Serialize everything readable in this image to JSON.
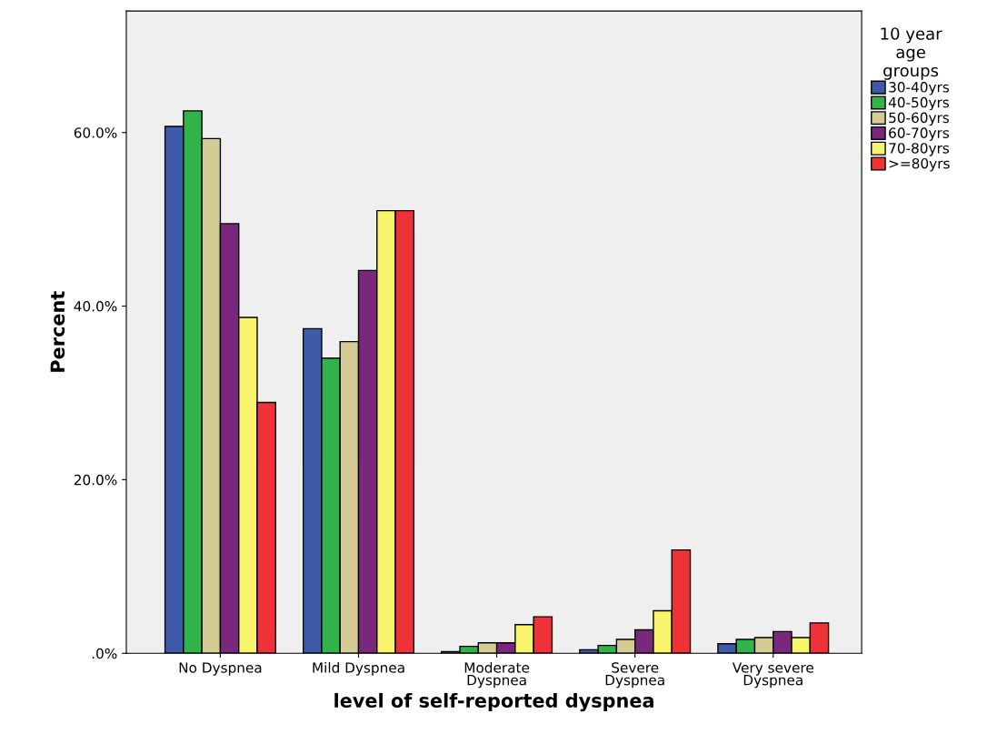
{
  "chart_data": {
    "type": "bar",
    "categories": [
      "No Dyspnea",
      "Mild Dyspnea",
      "Moderate\nDyspnea",
      "Severe\nDyspnea",
      "Very severe\nDyspnea"
    ],
    "series": [
      {
        "name": "30-40yrs",
        "color": "#3f5aa8",
        "values": [
          60.7,
          37.4,
          0.2,
          0.4,
          1.1
        ]
      },
      {
        "name": "40-50yrs",
        "color": "#33b44a",
        "values": [
          62.5,
          34.0,
          0.8,
          0.9,
          1.6
        ]
      },
      {
        "name": "50-60yrs",
        "color": "#d4cc94",
        "values": [
          59.3,
          35.9,
          1.2,
          1.6,
          1.8
        ]
      },
      {
        "name": "60-70yrs",
        "color": "#7a287c",
        "values": [
          49.5,
          44.1,
          1.2,
          2.7,
          2.5
        ]
      },
      {
        "name": "70-80yrs",
        "color": "#f8f46c",
        "values": [
          38.7,
          51.0,
          3.3,
          4.9,
          1.8
        ]
      },
      {
        "name": ">=80yrs",
        "color": "#ee3237",
        "values": [
          28.9,
          51.0,
          4.2,
          11.9,
          3.5
        ]
      }
    ],
    "xlabel": "level of self-reported dyspnea",
    "ylabel": "Percent",
    "legend_title": "10 year\nage\ngroups",
    "legend": "top right",
    "ylim": [
      0,
      74
    ],
    "yticks": [
      {
        "value": 0,
        "label": ".0%"
      },
      {
        "value": 20,
        "label": "20.0%"
      },
      {
        "value": 40,
        "label": "40.0%"
      },
      {
        "value": 60,
        "label": "60.0%"
      }
    ],
    "grid": false
  }
}
